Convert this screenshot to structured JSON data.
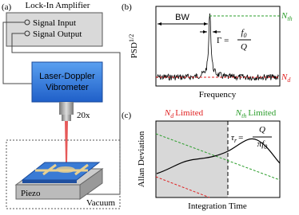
{
  "panel_a": {
    "label": "(a)",
    "lock_in": {
      "title": "Lock-In Amplifier",
      "input": "Signal Input",
      "output": "Signal Output"
    },
    "vibrometer": [
      "Laser-Doppler",
      "Vibrometer"
    ],
    "objective": "20x",
    "piezo": "Piezo",
    "vacuum": "Vacuum"
  },
  "panel_b": {
    "label": "(b)",
    "ylabel": {
      "text": "PSD",
      "sup": "1/2"
    },
    "xlabel": "Frequency",
    "bw": "BW",
    "linewidth": {
      "lhs": "Γ =",
      "num": {
        "text": "f",
        "sub": "0"
      },
      "den": "Q"
    },
    "thermal": {
      "text": "N",
      "sub": "th"
    },
    "detector": {
      "text": "N",
      "sub": "d"
    }
  },
  "panel_c": {
    "label": "(c)",
    "ylabel": "Allan Deviation",
    "xlabel": "Integration Time",
    "detector_limited": {
      "text": "N",
      "sub": "d",
      "rest": "Limited"
    },
    "thermal_limited": {
      "text": "N",
      "sub": "th",
      "rest": "Limited"
    },
    "response_time": {
      "lhs": {
        "text": "τ",
        "sub": "r",
        "eq": "="
      },
      "num": "Q",
      "den": {
        "pi": "π",
        "text": "f",
        "sub": "0"
      }
    }
  }
}
